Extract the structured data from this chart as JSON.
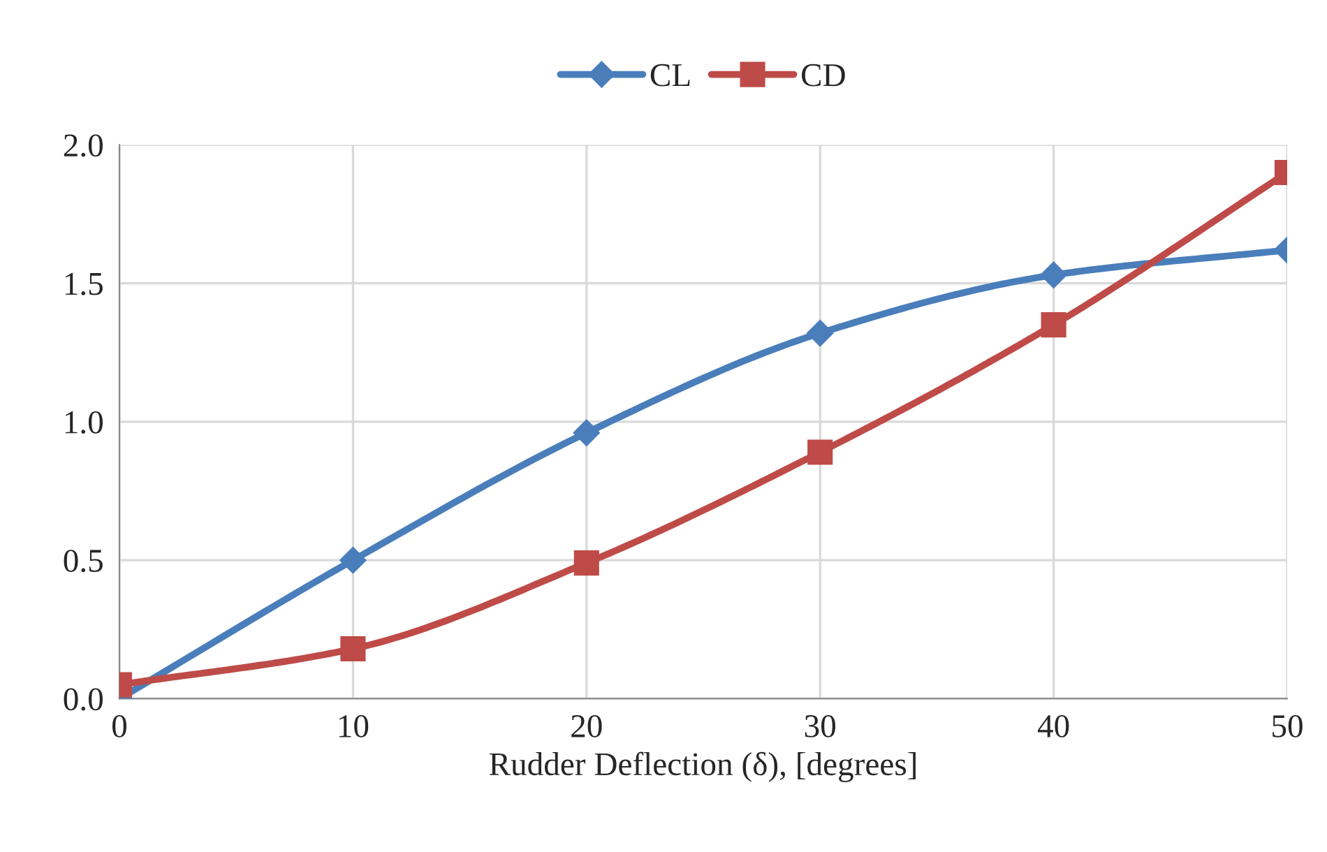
{
  "chart_data": {
    "type": "line",
    "xlabel": "Rudder Deflection (δ), [degrees]",
    "x": [
      0,
      10,
      20,
      30,
      40,
      50
    ],
    "series": [
      {
        "name": "CL",
        "color": "#4a7ebb",
        "marker": "diamond",
        "values": [
          0.0,
          0.5,
          0.96,
          1.32,
          1.53,
          1.62
        ]
      },
      {
        "name": "CD",
        "color": "#be4b48",
        "marker": "square",
        "values": [
          0.05,
          0.18,
          0.49,
          0.89,
          1.35,
          1.9
        ]
      }
    ],
    "xlim": [
      0,
      50
    ],
    "xticks": [
      0,
      10,
      20,
      30,
      40,
      50
    ],
    "ylim": [
      0,
      2
    ],
    "yticks": [
      {
        "value": 0,
        "label": "0.0"
      },
      {
        "value": 0.5,
        "label": "0.5"
      },
      {
        "value": 1,
        "label": "1.0"
      },
      {
        "value": 1.5,
        "label": "1.5"
      },
      {
        "value": 2,
        "label": "2.0"
      }
    ],
    "grid": true,
    "legend": "top",
    "line_style": "solid"
  }
}
